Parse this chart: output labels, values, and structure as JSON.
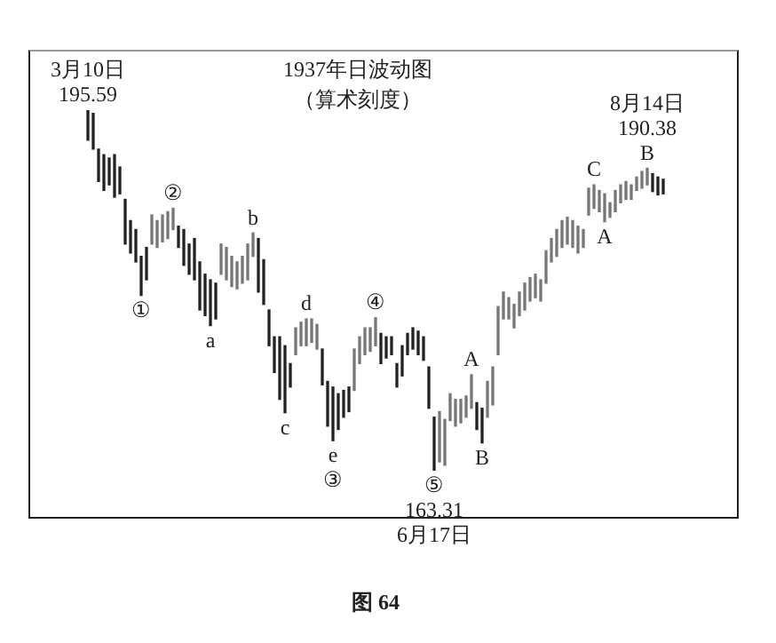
{
  "chart_data": {
    "type": "candlestick",
    "title": "1937年日波动图",
    "subtitle": "（算术刻度）",
    "colors": [
      "#222222",
      "#222222",
      "#222222",
      "#222222",
      "#222222",
      "#222222",
      "#222222",
      "#222222",
      "#222222",
      "#222222",
      "#222222",
      "#222222",
      "#777777",
      "#777777",
      "#777777",
      "#777777",
      "#777777",
      "#222222",
      "#222222",
      "#222222",
      "#222222",
      "#222222",
      "#222222",
      "#222222",
      "#222222",
      "#777777",
      "#777777",
      "#777777",
      "#777777",
      "#777777",
      "#777777",
      "#777777",
      "#222222",
      "#222222",
      "#222222",
      "#222222",
      "#222222",
      "#222222",
      "#222222",
      "#777777",
      "#777777",
      "#777777",
      "#777777",
      "#777777",
      "#222222",
      "#222222",
      "#222222",
      "#222222",
      "#222222",
      "#222222",
      "#777777",
      "#777777",
      "#777777",
      "#777777",
      "#777777",
      "#222222",
      "#222222",
      "#222222",
      "#222222",
      "#222222",
      "#222222",
      "#222222",
      "#222222",
      "#222222",
      "#222222",
      "#222222",
      "#777777",
      "#777777",
      "#777777",
      "#777777",
      "#777777",
      "#777777",
      "#777777",
      "#222222",
      "#222222",
      "#777777",
      "#777777",
      "#777777",
      "#777777",
      "#777777",
      "#777777",
      "#777777",
      "#777777",
      "#777777",
      "#777777",
      "#777777",
      "#777777",
      "#777777",
      "#777777",
      "#777777",
      "#777777",
      "#777777",
      "#777777",
      "#777777",
      "#777777",
      "#777777",
      "#777777",
      "#777777",
      "#777777",
      "#777777",
      "#777777",
      "#777777",
      "#777777",
      "#777777",
      "#777777",
      "#777777",
      "#222222",
      "#222222",
      "#222222"
    ],
    "categories": [
      null,
      null,
      null,
      null,
      null,
      null,
      null,
      null,
      null,
      null,
      null,
      null,
      null,
      null,
      null,
      null,
      null,
      null,
      null,
      null,
      null,
      null,
      null,
      null,
      null,
      null,
      null,
      null,
      null,
      null,
      null,
      null,
      null,
      null,
      null,
      null,
      null,
      null,
      null,
      null,
      null,
      null,
      null,
      null,
      null,
      null,
      null,
      null,
      null,
      null,
      null,
      null,
      null,
      null,
      null,
      null,
      null,
      null,
      null,
      null,
      null,
      null,
      null,
      null,
      null,
      null,
      null,
      null,
      null,
      null,
      null,
      null,
      null,
      null,
      null,
      null,
      null,
      null,
      null,
      null,
      null,
      null,
      null,
      null,
      null,
      null,
      null,
      null,
      null,
      null,
      null,
      null,
      null,
      null,
      null,
      null,
      null,
      null,
      null,
      null,
      null,
      null,
      null,
      null,
      null,
      null,
      null,
      null,
      null
    ],
    "ohlc": [
      [
        195.59,
        195.59,
        192.9,
        192.9
      ],
      [
        195.3,
        195.3,
        192.1,
        192.1
      ],
      [
        192.1,
        192.1,
        189.2,
        189.2
      ],
      [
        191.6,
        191.6,
        188.4,
        188.4
      ],
      [
        191.3,
        191.3,
        188.9,
        188.9
      ],
      [
        191.6,
        191.6,
        187.8,
        187.8
      ],
      [
        190.5,
        190.5,
        188.1,
        188.1
      ],
      [
        187.6,
        187.6,
        183.6,
        183.6
      ],
      [
        185.7,
        185.7,
        182.8,
        182.8
      ],
      [
        184.9,
        184.9,
        182.0,
        182.0
      ],
      [
        182.5,
        182.5,
        179.0,
        179.0
      ],
      [
        183.3,
        183.3,
        180.4,
        180.4
      ],
      [
        183.6,
        186.2,
        183.6,
        186.2
      ],
      [
        183.3,
        185.7,
        183.3,
        185.7
      ],
      [
        183.8,
        186.2,
        183.8,
        186.2
      ],
      [
        184.1,
        186.5,
        184.1,
        186.5
      ],
      [
        184.9,
        186.8,
        184.9,
        186.8
      ],
      [
        185.2,
        185.2,
        183.3,
        183.3
      ],
      [
        184.9,
        184.9,
        181.7,
        181.7
      ],
      [
        183.6,
        183.6,
        180.9,
        180.9
      ],
      [
        184.1,
        184.1,
        180.4,
        180.4
      ],
      [
        182.0,
        182.0,
        177.7,
        177.7
      ],
      [
        180.9,
        180.9,
        177.2,
        177.2
      ],
      [
        180.4,
        180.4,
        176.3,
        176.3
      ],
      [
        180.1,
        180.1,
        176.9,
        176.9
      ],
      [
        180.9,
        183.6,
        180.9,
        183.6
      ],
      [
        180.4,
        183.3,
        180.4,
        183.3
      ],
      [
        179.8,
        182.5,
        179.8,
        182.5
      ],
      [
        179.6,
        182.0,
        179.6,
        182.0
      ],
      [
        180.1,
        182.5,
        180.1,
        182.5
      ],
      [
        180.4,
        183.6,
        180.4,
        183.6
      ],
      [
        182.5,
        184.6,
        182.5,
        184.6
      ],
      [
        184.1,
        184.1,
        179.3,
        179.3
      ],
      [
        182.2,
        182.2,
        178.2,
        178.2
      ],
      [
        177.7,
        177.7,
        174.5,
        174.5
      ],
      [
        175.3,
        175.3,
        172.1,
        172.1
      ],
      [
        175.3,
        175.3,
        169.7,
        169.7
      ],
      [
        174.5,
        174.5,
        168.5,
        168.5
      ],
      [
        172.9,
        172.9,
        170.8,
        170.8
      ],
      [
        173.7,
        176.1,
        173.7,
        176.1
      ],
      [
        174.5,
        176.6,
        174.5,
        176.6
      ],
      [
        174.5,
        176.9,
        174.5,
        176.9
      ],
      [
        174.8,
        176.9,
        174.8,
        176.9
      ],
      [
        174.2,
        176.4,
        174.2,
        176.4
      ],
      [
        174.2,
        174.2,
        171.0,
        171.0
      ],
      [
        171.3,
        171.3,
        167.3,
        167.3
      ],
      [
        170.8,
        170.8,
        166.0,
        166.0
      ],
      [
        170.2,
        170.2,
        167.0,
        167.0
      ],
      [
        170.5,
        170.5,
        168.1,
        168.1
      ],
      [
        170.8,
        170.8,
        168.6,
        168.6
      ],
      [
        170.5,
        174.2,
        170.5,
        174.2
      ],
      [
        172.9,
        175.3,
        172.9,
        175.3
      ],
      [
        173.7,
        176.1,
        173.7,
        176.1
      ],
      [
        174.0,
        176.1,
        174.0,
        176.1
      ],
      [
        174.5,
        177.0,
        174.5,
        177.0
      ],
      [
        175.6,
        175.6,
        172.9,
        172.9
      ],
      [
        175.3,
        175.3,
        173.4,
        173.4
      ],
      [
        175.3,
        175.3,
        173.7,
        173.7
      ],
      [
        172.9,
        172.9,
        170.8,
        170.8
      ],
      [
        174.5,
        174.5,
        171.8,
        171.8
      ],
      [
        175.6,
        175.6,
        173.7,
        173.7
      ],
      [
        176.1,
        176.1,
        174.2,
        174.2
      ],
      [
        175.8,
        175.8,
        173.7,
        173.7
      ],
      [
        175.3,
        175.3,
        173.2,
        173.2
      ],
      [
        172.6,
        172.6,
        168.9,
        168.9
      ],
      [
        168.1,
        168.1,
        163.31,
        163.31
      ],
      [
        164.1,
        168.6,
        164.1,
        168.6
      ],
      [
        163.8,
        167.9,
        163.8,
        167.9
      ],
      [
        167.8,
        170.2,
        167.8,
        170.2
      ],
      [
        167.3,
        169.7,
        167.3,
        169.7
      ],
      [
        167.6,
        169.7,
        167.6,
        169.7
      ],
      [
        168.1,
        170.0,
        168.1,
        170.0
      ],
      [
        168.9,
        171.9,
        168.9,
        171.9
      ],
      [
        169.4,
        169.4,
        167.0,
        167.0
      ],
      [
        168.9,
        168.9,
        165.8,
        165.8
      ],
      [
        168.1,
        171.3,
        168.1,
        171.3
      ],
      [
        169.2,
        172.6,
        169.2,
        172.6
      ],
      [
        173.7,
        178.0,
        173.7,
        178.0
      ],
      [
        176.9,
        179.3,
        176.9,
        179.3
      ],
      [
        176.9,
        178.8,
        176.9,
        178.8
      ],
      [
        176.1,
        178.2,
        176.1,
        178.2
      ],
      [
        177.2,
        179.3,
        177.2,
        179.3
      ],
      [
        177.7,
        180.1,
        177.7,
        180.1
      ],
      [
        178.5,
        180.6,
        178.5,
        180.6
      ],
      [
        178.8,
        180.9,
        178.8,
        180.9
      ],
      [
        178.5,
        180.4,
        178.5,
        180.4
      ],
      [
        180.1,
        183.0,
        180.1,
        183.0
      ],
      [
        182.0,
        184.1,
        182.0,
        184.1
      ],
      [
        182.5,
        184.9,
        182.5,
        184.9
      ],
      [
        183.3,
        185.7,
        183.3,
        185.7
      ],
      [
        183.6,
        186.0,
        183.6,
        186.0
      ],
      [
        183.3,
        185.7,
        183.3,
        185.7
      ],
      [
        182.8,
        185.2,
        182.8,
        185.2
      ],
      [
        183.3,
        184.9,
        183.3,
        184.9
      ],
      [
        186.2,
        188.6,
        186.2,
        188.6
      ],
      [
        186.8,
        188.9,
        186.8,
        188.9
      ],
      [
        186.5,
        188.4,
        186.5,
        188.4
      ],
      [
        185.6,
        188.1,
        185.6,
        188.1
      ],
      [
        186.0,
        187.3,
        186.0,
        187.3
      ],
      [
        186.5,
        188.4,
        186.5,
        188.4
      ],
      [
        187.3,
        188.9,
        187.3,
        188.9
      ],
      [
        187.6,
        189.2,
        187.6,
        189.2
      ],
      [
        187.6,
        188.9,
        187.6,
        188.9
      ],
      [
        188.4,
        189.6,
        188.4,
        189.6
      ],
      [
        188.6,
        190.1,
        188.6,
        190.1
      ],
      [
        188.9,
        190.38,
        188.9,
        190.38
      ],
      [
        189.9,
        189.9,
        188.3,
        188.3
      ],
      [
        189.6,
        189.6,
        188.0,
        188.0
      ],
      [
        189.4,
        189.4,
        188.1,
        188.1
      ]
    ],
    "annotations": [
      {
        "text": "3月10日\n195.59",
        "y": 195.59
      },
      {
        "text": "①",
        "y": 179.0
      },
      {
        "text": "②",
        "y": 186.8
      },
      {
        "text": "a",
        "y": 176.3
      },
      {
        "text": "b",
        "y": 184.6
      },
      {
        "text": "c",
        "y": 168.5
      },
      {
        "text": "d",
        "y": 176.9
      },
      {
        "text": "e\n③",
        "y": 166.0
      },
      {
        "text": "④",
        "y": 177.0
      },
      {
        "text": "⑤\n163.31\n6月17日",
        "y": 163.31
      },
      {
        "text": "A",
        "y": 171.9
      },
      {
        "text": "B",
        "y": 165.8
      },
      {
        "text": "C",
        "y": 188.9
      },
      {
        "text": "A",
        "y": 185.6
      },
      {
        "text": "8月14日\n190.38\nB",
        "y": 190.38
      },
      "图 64"
    ],
    "tick_labels": false
  }
}
